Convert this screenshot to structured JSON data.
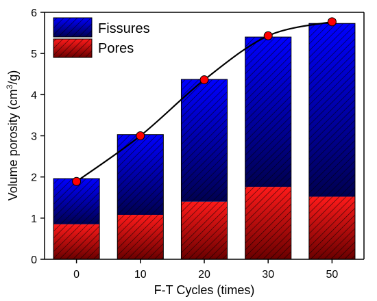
{
  "chart_data": {
    "type": "bar",
    "stacked": true,
    "categories": [
      "0",
      "10",
      "20",
      "30",
      "50"
    ],
    "series": [
      {
        "name": "Pores",
        "values": [
          0.85,
          1.08,
          1.4,
          1.76,
          1.52
        ],
        "color": "#ff0000"
      },
      {
        "name": "Fissures",
        "values": [
          1.11,
          1.95,
          2.97,
          3.64,
          4.21
        ],
        "color": "#1a1aff"
      }
    ],
    "line": {
      "values": [
        1.89,
        3.0,
        4.36,
        5.43,
        5.77
      ],
      "marker_color": "#ff0000",
      "line_color": "#000000"
    },
    "xlabel": "F-T Cycles (times)",
    "ylabel_main": "Volume porosity (cm",
    "ylabel_sup": "3",
    "ylabel_tail": "/g)",
    "ylim": [
      0,
      6
    ],
    "yticks": [
      "0",
      "1",
      "2",
      "3",
      "4",
      "5",
      "6"
    ],
    "legend_position": "top-left",
    "grid": false
  }
}
